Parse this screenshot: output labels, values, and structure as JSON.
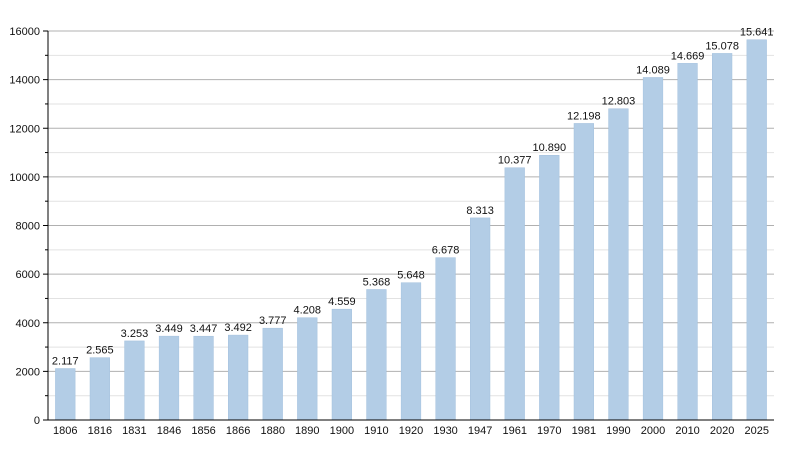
{
  "chart_data": {
    "type": "bar",
    "title": "",
    "xlabel": "",
    "ylabel": "",
    "categories": [
      "1806",
      "1816",
      "1831",
      "1846",
      "1856",
      "1866",
      "1880",
      "1890",
      "1900",
      "1910",
      "1920",
      "1930",
      "1947",
      "1961",
      "1970",
      "1981",
      "1990",
      "2000",
      "2010",
      "2020",
      "2025"
    ],
    "values": [
      2117,
      2565,
      3253,
      3449,
      3447,
      3492,
      3777,
      4208,
      4559,
      5368,
      5648,
      6678,
      8313,
      10377,
      10890,
      12198,
      12803,
      14089,
      14669,
      15078,
      15641
    ],
    "data_labels": [
      "2.117",
      "2.565",
      "3.253",
      "3.449",
      "3.447",
      "3.492",
      "3.777",
      "4.208",
      "4.559",
      "5.368",
      "5.648",
      "6.678",
      "8.313",
      "10.377",
      "10.890",
      "12.198",
      "12.803",
      "14.089",
      "14.669",
      "15.078",
      "15.641"
    ],
    "ylim": [
      0,
      16000
    ],
    "y_ticks": [
      0,
      2000,
      4000,
      6000,
      8000,
      10000,
      12000,
      14000,
      16000
    ],
    "y_tick_labels": [
      "0",
      "2000",
      "4000",
      "6000",
      "8000",
      "10000",
      "12000",
      "14000",
      "16000"
    ],
    "grid": true,
    "minor_gridlines": true,
    "legend": "none",
    "colors": {
      "bar": "#b3cde6",
      "bar_edge": "#a3c0dd",
      "major_grid": "#b0b0b0",
      "minor_grid": "#e2e2e2",
      "axis": "#000000",
      "text": "#111111"
    }
  }
}
